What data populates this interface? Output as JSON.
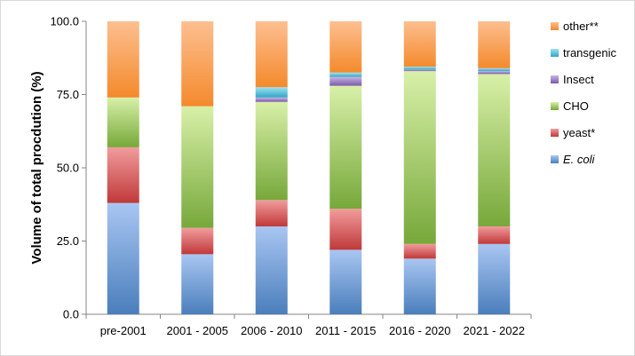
{
  "chart_data": {
    "type": "bar",
    "stacked": true,
    "title": "",
    "xlabel": "",
    "ylabel": "Volume of total procdution (%)",
    "ylim": [
      0,
      100
    ],
    "yticks": [
      "0.0",
      "25.0",
      "50.0",
      "75.0",
      "100.0"
    ],
    "grid": false,
    "legend_position": "right",
    "categories": [
      "pre-2001",
      "2001 - 2005",
      "2006 - 2010",
      "2011 - 2015",
      "2016 - 2020",
      "2021 - 2022"
    ],
    "series": [
      {
        "name": "E. coli",
        "color": "#4a7ebb",
        "light": "#a9c6f2",
        "values": [
          38,
          20.5,
          30,
          22,
          19,
          24
        ]
      },
      {
        "name": "yeast*",
        "color": "#c0393a",
        "light": "#f19c9c",
        "values": [
          19,
          9,
          9,
          14,
          5,
          6
        ]
      },
      {
        "name": "CHO",
        "color": "#77a83a",
        "light": "#d8f0a8",
        "values": [
          17,
          41.5,
          33.5,
          42,
          59,
          52
        ]
      },
      {
        "name": "Insect",
        "color": "#7b5aa6",
        "light": "#c8b4e6",
        "values": [
          0,
          0,
          1.5,
          3,
          0.5,
          1
        ]
      },
      {
        "name": "transgenic",
        "color": "#31a6c4",
        "light": "#9ee2f2",
        "values": [
          0,
          0,
          3.5,
          1.5,
          1,
          1
        ]
      },
      {
        "name": "other**",
        "color": "#f48a2c",
        "light": "#fdbf90",
        "values": [
          26,
          29,
          22.5,
          17.5,
          15.5,
          16
        ]
      }
    ]
  }
}
